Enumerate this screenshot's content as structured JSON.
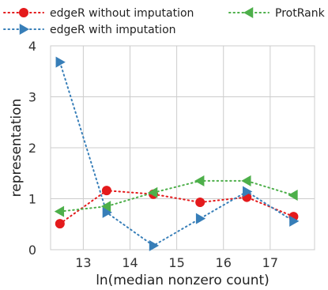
{
  "chart_data": {
    "type": "line",
    "xlabel": "ln(median nonzero count)",
    "ylabel": "representation",
    "xlim": [
      12.3,
      17.95
    ],
    "ylim": [
      0,
      4
    ],
    "xticks": [
      13,
      14,
      15,
      16,
      17
    ],
    "yticks": [
      0,
      1,
      2,
      3,
      4
    ],
    "grid": true,
    "legend_position": "top",
    "x": [
      12.5,
      13.5,
      14.5,
      15.5,
      16.5,
      17.5
    ],
    "series": [
      {
        "name": "edgeR without imputation",
        "color": "#e41a1c",
        "marker": "circle",
        "values": [
          0.51,
          1.16,
          1.09,
          0.93,
          1.03,
          0.65
        ]
      },
      {
        "name": "edgeR with imputation",
        "color": "#377eb8",
        "marker": "triangle-right",
        "values": [
          3.68,
          0.73,
          0.08,
          0.61,
          1.14,
          0.56
        ]
      },
      {
        "name": "ProtRank",
        "color": "#4daf4a",
        "marker": "triangle-left",
        "values": [
          0.75,
          0.85,
          1.12,
          1.35,
          1.35,
          1.07
        ]
      }
    ]
  }
}
